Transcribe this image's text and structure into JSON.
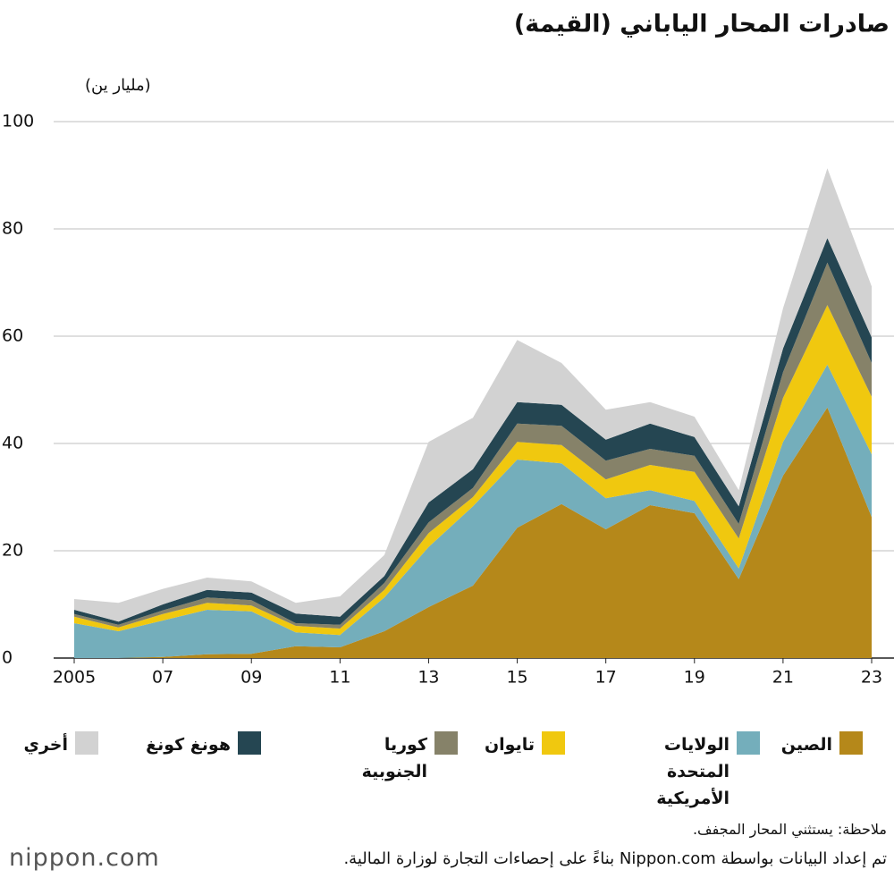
{
  "chart_data": {
    "type": "stacked_area",
    "title": "صادرات المحار الياباني (القيمة)",
    "y_label": "(مليار ين)",
    "x": [
      2005,
      2006,
      2007,
      2008,
      2009,
      2010,
      2011,
      2012,
      2013,
      2014,
      2015,
      2016,
      2017,
      2018,
      2019,
      2020,
      2021,
      2022,
      2023
    ],
    "xlim": [
      2005,
      2023
    ],
    "xticks": [
      2005,
      {
        "value": 2007,
        "label": "07"
      },
      {
        "value": 2009,
        "label": "09"
      },
      {
        "value": 2011,
        "label": "11"
      },
      {
        "value": 2013,
        "label": "13"
      },
      {
        "value": 2015,
        "label": "15"
      },
      {
        "value": 2017,
        "label": "17"
      },
      {
        "value": 2019,
        "label": "19"
      },
      {
        "value": 2021,
        "label": "21"
      },
      {
        "value": 2023,
        "label": "23"
      }
    ],
    "ylim": [
      0,
      100
    ],
    "yticks": [
      0,
      20,
      40,
      60,
      80,
      100
    ],
    "grid": true,
    "series": [
      {
        "name": "الصين",
        "color": "#b5881a",
        "values": [
          0,
          0,
          0.2,
          0.7,
          0.8,
          2.2,
          2,
          5,
          9.5,
          13.5,
          24.3,
          28.7,
          24,
          28.5,
          27,
          14.7,
          34,
          46.7,
          26.3
        ]
      },
      {
        "name": "الولايات المتحدة الأمريكية",
        "color": "#74aebb",
        "values": [
          6.5,
          5,
          6.8,
          8.3,
          7.9,
          2.6,
          2.3,
          6.3,
          11.2,
          14.8,
          12.7,
          7.6,
          5.8,
          2.8,
          2.3,
          2,
          6.3,
          8,
          11.7
        ]
      },
      {
        "name": "تايوان",
        "color": "#f0c80f",
        "values": [
          1.2,
          0.7,
          1.2,
          1.3,
          1.1,
          1.2,
          1.2,
          1.4,
          2.6,
          1.7,
          3.3,
          3.4,
          3.5,
          4.7,
          5.4,
          5.6,
          8.2,
          11.1,
          10.7
        ]
      },
      {
        "name": "كوريا الجنوبية",
        "color": "#868269",
        "values": [
          0.5,
          0.5,
          0.7,
          1,
          1,
          0.5,
          0.7,
          1.3,
          2,
          1.7,
          3.4,
          3.6,
          3.5,
          3,
          3,
          2.7,
          4.8,
          7.9,
          6.3
        ]
      },
      {
        "name": "هونغ كونغ",
        "color": "#254652",
        "values": [
          0.8,
          0.6,
          1.1,
          1.4,
          1.4,
          1.8,
          1.5,
          1.3,
          3.7,
          3.5,
          4,
          3.9,
          3.9,
          4.7,
          3.5,
          3.3,
          4.4,
          4.6,
          4.8
        ]
      },
      {
        "name": "أخري",
        "color": "#d2d2d2",
        "values": [
          2,
          3.5,
          2.9,
          2.3,
          2.1,
          2,
          3.8,
          3.9,
          11.3,
          9.6,
          11.6,
          7.8,
          5.6,
          4,
          3.8,
          3,
          7.5,
          13,
          9.5
        ]
      }
    ],
    "note": "ملاحظة: يستثني المحار المجفف.",
    "source": "تم إعداد البيانات بواسطة Nippon.com بناءً على إحصاءات التجارة لوزارة المالية.",
    "logo": "nippon.com"
  }
}
